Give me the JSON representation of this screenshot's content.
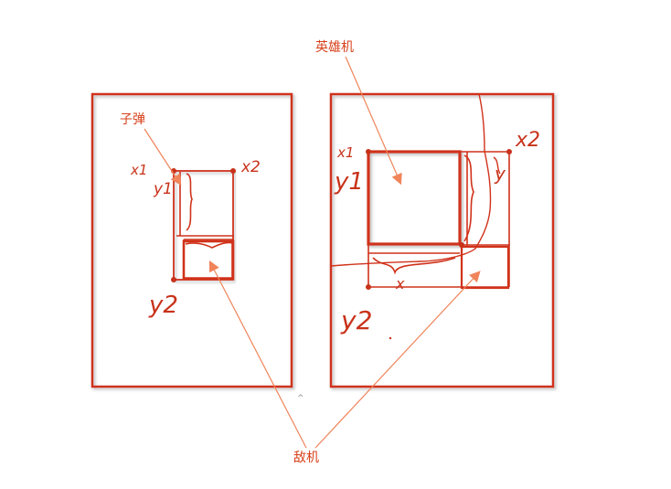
{
  "labels": {
    "bullet": "子弹",
    "hero": "英雄机",
    "enemy": "敌机"
  },
  "handwriting": {
    "x1": "x1",
    "y1": "y1",
    "x2": "x2",
    "y2": "y2",
    "x": "x",
    "y": "y"
  },
  "colors": {
    "stroke": "#d0321a",
    "shadow": "#9a9a9a",
    "label": "#d7401a",
    "arrow": "#f0845a"
  }
}
